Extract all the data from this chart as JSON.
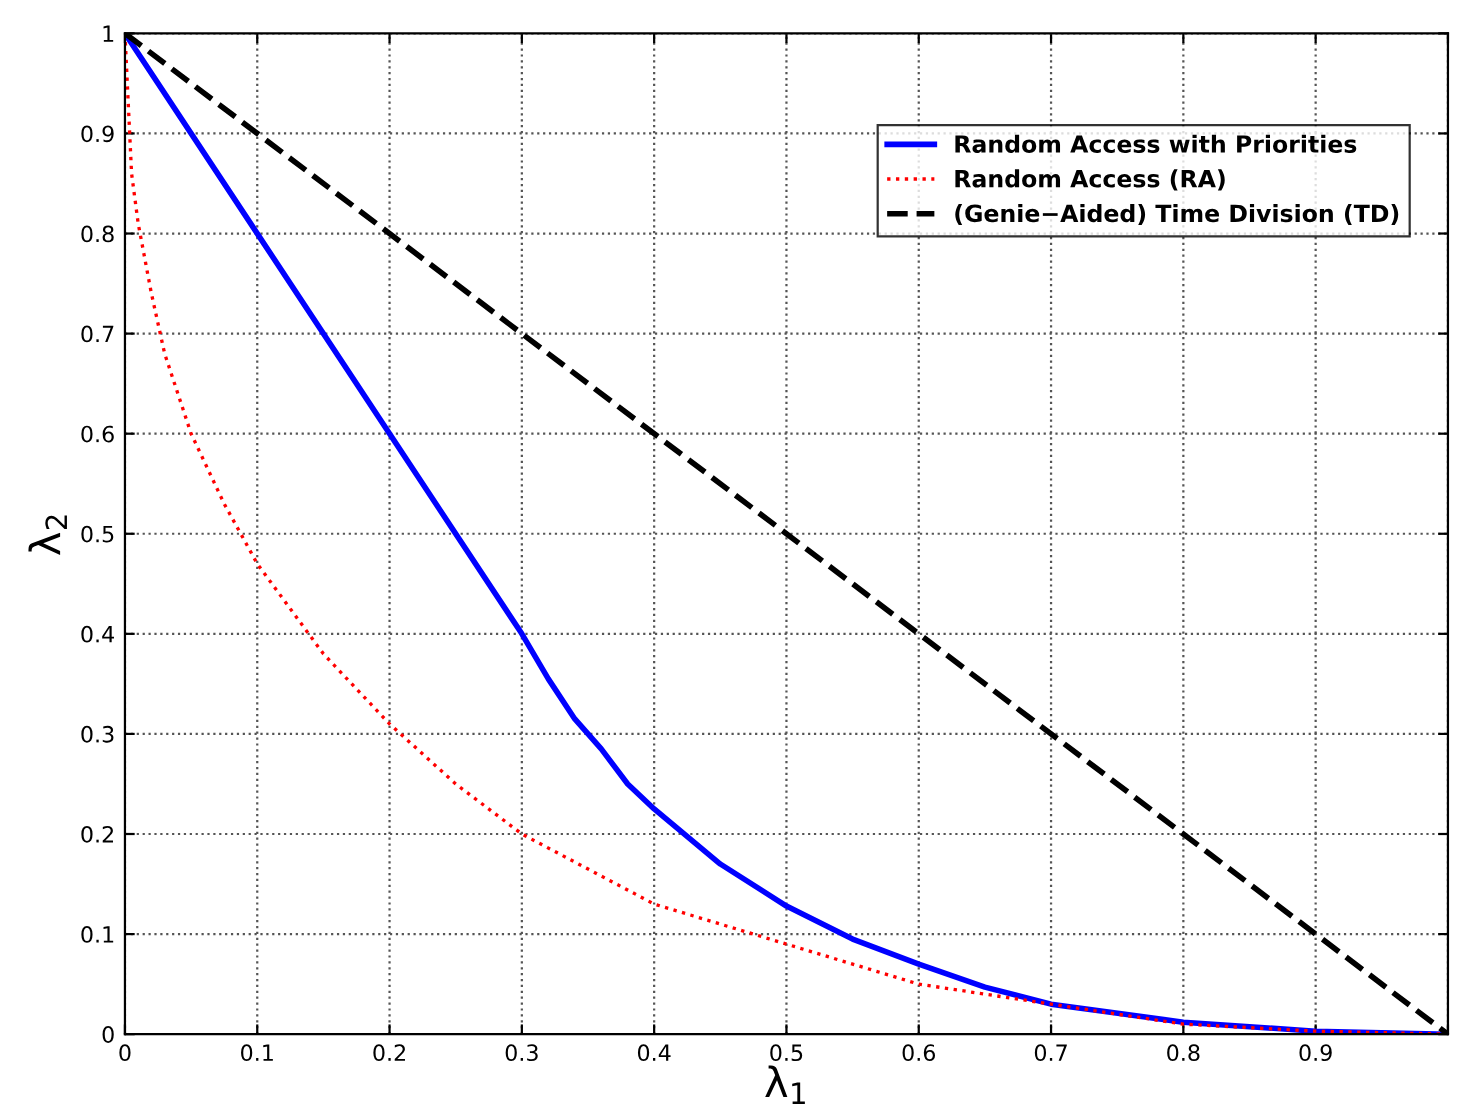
{
  "chart_data": {
    "type": "line",
    "xlabel": "λ$_{1}$",
    "ylabel": "λ$_{2}$",
    "xlim": [
      0,
      1
    ],
    "ylim": [
      0,
      1
    ],
    "xticks": [
      0,
      0.1,
      0.2,
      0.3,
      0.4,
      0.5,
      0.6,
      0.7,
      0.8,
      0.9,
      {
        "value": 1,
        "label": null
      }
    ],
    "yticks": [
      0,
      0.1,
      0.2,
      0.3,
      0.4,
      0.5,
      0.6,
      0.7,
      0.8,
      0.9,
      1
    ],
    "grid": true,
    "legend": "top right",
    "marker": "none",
    "series": [
      {
        "name": "Random Access with Priorities",
        "color": "#0000ff",
        "line_style": "solid",
        "x": [
          0,
          0.3,
          0.32,
          0.34,
          0.36,
          0.38,
          0.4,
          0.45,
          0.5,
          0.55,
          0.6,
          0.65,
          0.7,
          0.8,
          0.9,
          1
        ],
        "values": [
          1,
          0.4,
          0.355,
          0.315,
          0.285,
          0.25,
          0.225,
          0.17,
          0.128,
          0.095,
          0.07,
          0.047,
          0.03,
          0.012,
          0.003,
          0
        ]
      },
      {
        "name": "Random Access (RA)",
        "color": "#ff0000",
        "line_style": "dotted",
        "x": [
          0,
          0.005,
          0.01,
          0.02,
          0.03,
          0.05,
          0.075,
          0.1,
          0.15,
          0.2,
          0.25,
          0.3,
          0.4,
          0.5,
          0.6,
          0.7,
          0.8,
          0.9,
          1
        ],
        "values": [
          1,
          0.86,
          0.81,
          0.74,
          0.68,
          0.6,
          0.53,
          0.47,
          0.38,
          0.31,
          0.25,
          0.2,
          0.13,
          0.09,
          0.05,
          0.03,
          0.01,
          0.003,
          0
        ]
      },
      {
        "name": "(Genie−Aided) Time Division (TD)",
        "color": "#000000",
        "line_style": "dashed",
        "x": [
          0,
          1
        ],
        "values": [
          1,
          0
        ]
      }
    ]
  }
}
